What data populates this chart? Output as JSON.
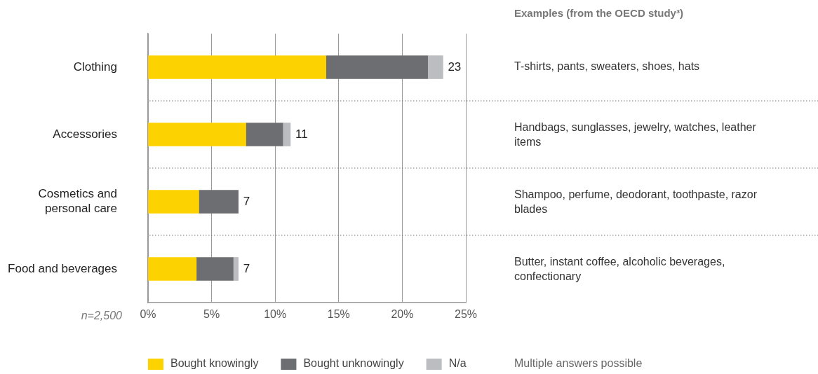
{
  "chart_data": {
    "type": "bar",
    "orientation": "horizontal",
    "stacked": true,
    "categories": [
      "Clothing",
      "Accessories",
      "Cosmetics and personal care",
      "Food and beverages"
    ],
    "series": [
      {
        "name": "Bought knowingly",
        "color": "#fcd200",
        "values": [
          14.0,
          7.7,
          4.0,
          3.8
        ]
      },
      {
        "name": "Bought unknowingly",
        "color": "#6d6e71",
        "values": [
          8.0,
          2.9,
          3.1,
          2.9
        ]
      },
      {
        "name": "N/a",
        "color": "#bcbdc0",
        "values": [
          1.2,
          0.6,
          null,
          0.4
        ]
      }
    ],
    "totals": [
      "23",
      "11",
      "7",
      "7"
    ],
    "xlim": [
      0,
      25
    ],
    "xticks": [
      {
        "value": 0,
        "label": "0%"
      },
      {
        "value": 5,
        "label": "5%"
      },
      {
        "value": 10,
        "label": "10%"
      },
      {
        "value": 15,
        "label": "15%"
      },
      {
        "value": 20,
        "label": "20%"
      },
      {
        "value": 25,
        "label": "25%"
      }
    ],
    "grid": "x",
    "legend": "bottom",
    "annotations": [
      "Examples (from the OECD study³)",
      "T-shirts, pants, sweaters, shoes, hats",
      "Handbags, sunglasses, jewelry, watches, leather items",
      "Shampoo, perfume, deodorant, toothpaste, razor blades",
      "Butter, instant coffee, alcoholic beverages, confectionary",
      "n=2,500",
      "Multiple answers possible"
    ]
  }
}
